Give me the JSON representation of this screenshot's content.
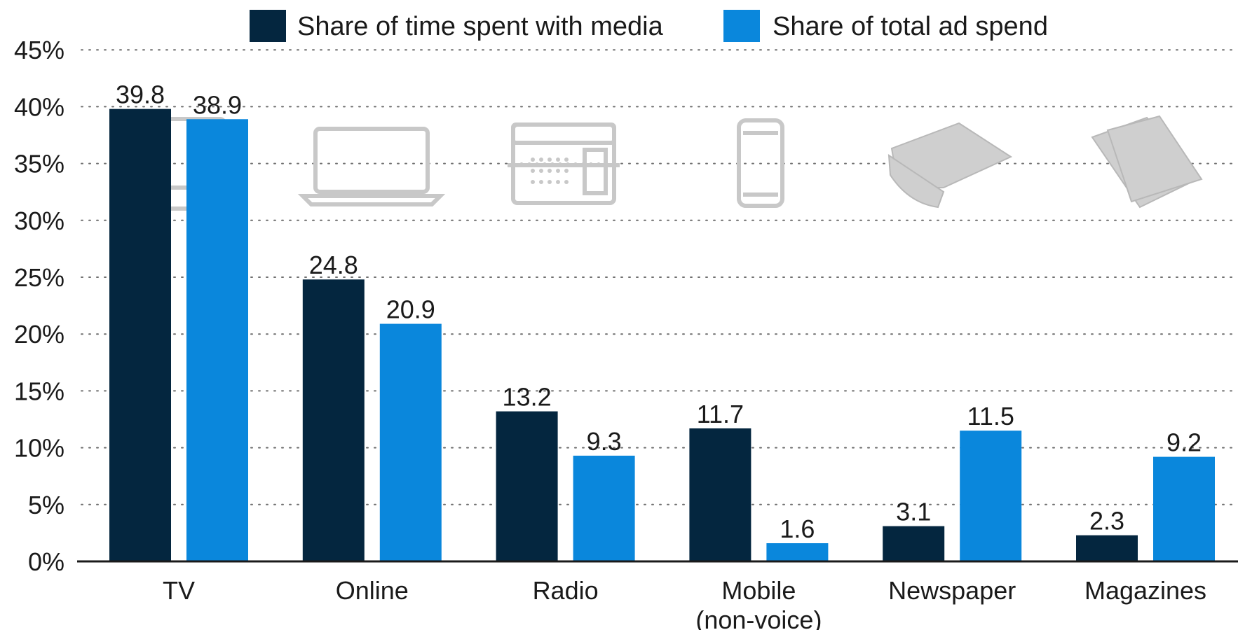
{
  "chart_data": {
    "type": "bar",
    "categories": [
      "TV",
      "Online",
      "Radio",
      "Mobile\n(non-voice)",
      "Newspaper",
      "Magazines"
    ],
    "series": [
      {
        "name": "Share of time spent with media",
        "color": "#04263f",
        "values": [
          39.8,
          24.8,
          13.2,
          11.7,
          3.1,
          2.3
        ],
        "value_labels": [
          "39.8",
          "24.8",
          "13.2",
          "11.7",
          "3.1",
          "2.3"
        ]
      },
      {
        "name": "Share of total ad spend",
        "color": "#0a87dc",
        "values": [
          38.9,
          20.9,
          9.3,
          1.6,
          11.5,
          9.2
        ],
        "value_labels": [
          "38.9",
          "20.9",
          "9.3",
          "1.6",
          "11.5",
          "9.2"
        ]
      }
    ],
    "ylim": [
      0,
      45
    ],
    "yticks": [
      0,
      5,
      10,
      15,
      20,
      25,
      30,
      35,
      40,
      45
    ],
    "ytick_labels": [
      "0%",
      "5%",
      "10%",
      "15%",
      "20%",
      "25%",
      "30%",
      "35%",
      "40%",
      "45%"
    ],
    "grid": true,
    "legend_position": "top",
    "category_icons": [
      "tv-icon",
      "laptop-icon",
      "radio-icon",
      "mobile-phone-icon",
      "newspaper-icon",
      "magazines-icon"
    ]
  }
}
